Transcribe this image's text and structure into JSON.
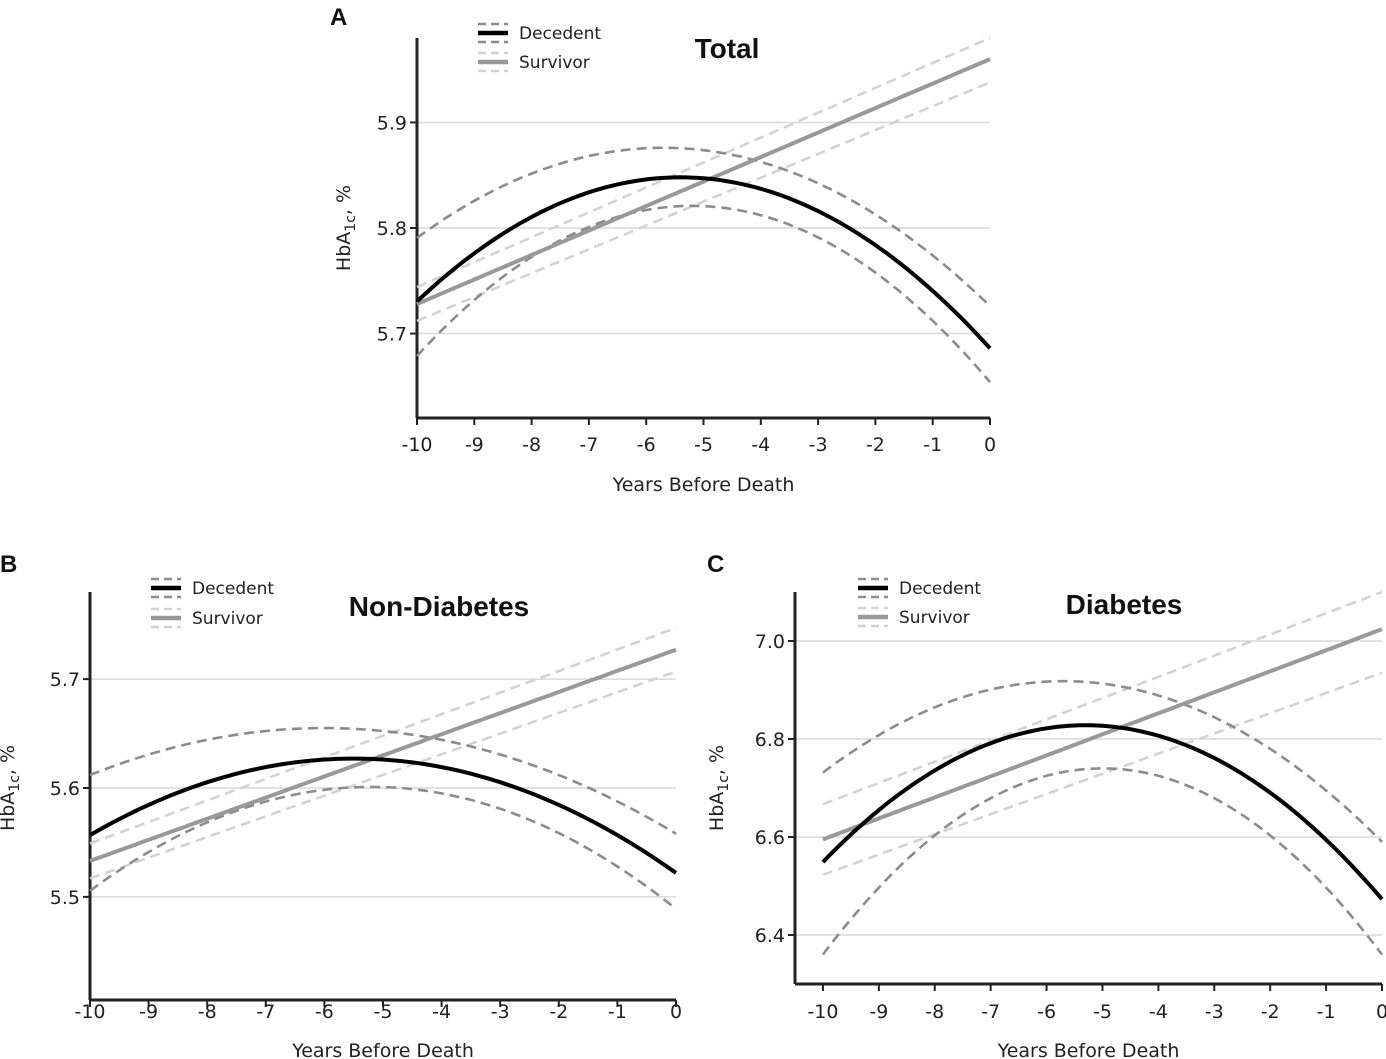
{
  "figure": {
    "legend": {
      "decedent": "Decedent",
      "survivor": "Survivor"
    },
    "colors": {
      "decedent": "#000000",
      "decedent_ci": "#8c8c8c",
      "survivor": "#999999",
      "survivor_ci": "#d3d3d3",
      "grid": "#d9d9d9",
      "axis": "#222222"
    }
  },
  "chart_data": [
    {
      "panel": "A",
      "type": "line",
      "title": "Total",
      "xlabel": "Years Before Death",
      "ylabel_main": "HbA",
      "ylabel_sub": "1c",
      "ylabel_suffix": ", %",
      "xlim": [
        -10,
        0
      ],
      "ylim": [
        5.62,
        5.98
      ],
      "xticks": [
        -10,
        -9,
        -8,
        -7,
        -6,
        -5,
        -4,
        -3,
        -2,
        -1,
        0
      ],
      "yticks": [
        5.7,
        5.8,
        5.9
      ],
      "ytick_labels": [
        "5.7",
        "5.8",
        "5.9"
      ],
      "series": [
        {
          "name": "Decedent",
          "kind": "quadratic",
          "vertex_x": -5.4,
          "vertex_y": 5.848,
          "end_y": 5.686
        },
        {
          "name": "Decedent upper CI",
          "kind": "quadratic",
          "vertex_x": -5.7,
          "vertex_y": 5.876,
          "end_y": 5.726
        },
        {
          "name": "Decedent lower CI",
          "kind": "quadratic",
          "vertex_x": -5.2,
          "vertex_y": 5.821,
          "end_y": 5.654
        },
        {
          "name": "Survivor",
          "kind": "linear",
          "y_start": 5.728,
          "y_end": 5.96
        },
        {
          "name": "Survivor upper CI",
          "kind": "linear",
          "y_start": 5.744,
          "y_end": 5.98
        },
        {
          "name": "Survivor lower CI",
          "kind": "linear",
          "y_start": 5.712,
          "y_end": 5.938
        }
      ]
    },
    {
      "panel": "B",
      "type": "line",
      "title": "Non-Diabetes",
      "xlabel": "Years Before Death",
      "ylabel_main": "HbA",
      "ylabel_sub": "1c",
      "ylabel_suffix": ", %",
      "xlim": [
        -10,
        0
      ],
      "ylim": [
        5.42,
        5.78
      ],
      "xticks": [
        -10,
        -9,
        -8,
        -7,
        -6,
        -5,
        -4,
        -3,
        -2,
        -1,
        0
      ],
      "yticks": [
        5.5,
        5.6,
        5.7
      ],
      "ytick_labels": [
        "5.5",
        "5.6",
        "5.7"
      ],
      "series": [
        {
          "name": "Decedent",
          "kind": "quadratic",
          "vertex_x": -5.5,
          "vertex_y": 5.627,
          "end_y": 5.522
        },
        {
          "name": "Decedent upper CI",
          "kind": "quadratic",
          "vertex_x": -6.0,
          "vertex_y": 5.655,
          "end_y": 5.558
        },
        {
          "name": "Decedent lower CI",
          "kind": "quadratic",
          "vertex_x": -5.2,
          "vertex_y": 5.601,
          "end_y": 5.489
        },
        {
          "name": "Survivor",
          "kind": "linear",
          "y_start": 5.533,
          "y_end": 5.727
        },
        {
          "name": "Survivor upper CI",
          "kind": "linear",
          "y_start": 5.549,
          "y_end": 5.747
        },
        {
          "name": "Survivor lower CI",
          "kind": "linear",
          "y_start": 5.517,
          "y_end": 5.707
        }
      ]
    },
    {
      "panel": "C",
      "type": "line",
      "title": "Diabetes",
      "xlabel": "Years Before Death",
      "ylabel_main": "HbA",
      "ylabel_sub": "1c",
      "ylabel_suffix": ", %",
      "xlim": [
        -10.5,
        0
      ],
      "ylim": [
        6.3,
        7.1
      ],
      "xticks": [
        -10,
        -9,
        -8,
        -7,
        -6,
        -5,
        -4,
        -3,
        -2,
        -1,
        0
      ],
      "yticks": [
        6.4,
        6.6,
        6.8,
        7.0
      ],
      "ytick_labels": [
        "6.4",
        "6.6",
        "6.8",
        "7.0"
      ],
      "series": [
        {
          "name": "Decedent",
          "kind": "quadratic",
          "vertex_x": -5.3,
          "vertex_y": 6.828,
          "end_y": 6.473
        },
        {
          "name": "Decedent upper CI",
          "kind": "quadratic",
          "vertex_x": -5.7,
          "vertex_y": 6.918,
          "end_y": 6.59
        },
        {
          "name": "Decedent lower CI",
          "kind": "quadratic",
          "vertex_x": -5.0,
          "vertex_y": 6.74,
          "end_y": 6.36
        },
        {
          "name": "Survivor",
          "kind": "linear",
          "y_start": 6.595,
          "y_end": 7.024
        },
        {
          "name": "Survivor upper CI",
          "kind": "linear",
          "y_start": 6.667,
          "y_end": 7.1
        },
        {
          "name": "Survivor lower CI",
          "kind": "linear",
          "y_start": 6.523,
          "y_end": 6.935
        }
      ]
    }
  ]
}
